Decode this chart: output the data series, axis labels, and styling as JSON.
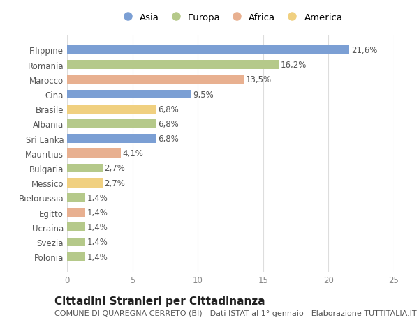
{
  "categories": [
    "Polonia",
    "Svezia",
    "Ucraina",
    "Egitto",
    "Bielorussia",
    "Messico",
    "Bulgaria",
    "Mauritius",
    "Sri Lanka",
    "Albania",
    "Brasile",
    "Cina",
    "Marocco",
    "Romania",
    "Filippine"
  ],
  "values": [
    1.4,
    1.4,
    1.4,
    1.4,
    1.4,
    2.7,
    2.7,
    4.1,
    6.8,
    6.8,
    6.8,
    9.5,
    13.5,
    16.2,
    21.6
  ],
  "labels": [
    "1,4%",
    "1,4%",
    "1,4%",
    "1,4%",
    "1,4%",
    "2,7%",
    "2,7%",
    "4,1%",
    "6,8%",
    "6,8%",
    "6,8%",
    "9,5%",
    "13,5%",
    "16,2%",
    "21,6%"
  ],
  "colors": [
    "#b5c98a",
    "#b5c98a",
    "#b5c98a",
    "#e8b090",
    "#b5c98a",
    "#f0d080",
    "#b5c98a",
    "#e8b090",
    "#7b9fd4",
    "#b5c98a",
    "#f0d080",
    "#7b9fd4",
    "#e8b090",
    "#b5c98a",
    "#7b9fd4"
  ],
  "legend_labels": [
    "Asia",
    "Europa",
    "Africa",
    "America"
  ],
  "legend_colors": [
    "#7b9fd4",
    "#b5c98a",
    "#e8b090",
    "#f0d080"
  ],
  "title": "Cittadini Stranieri per Cittadinanza",
  "subtitle": "COMUNE DI QUAREGNA CERRETO (BI) - Dati ISTAT al 1° gennaio - Elaborazione TUTTITALIA.IT",
  "xlim": [
    0,
    25
  ],
  "xticks": [
    0,
    5,
    10,
    15,
    20,
    25
  ],
  "background_color": "#ffffff",
  "grid_color": "#dddddd",
  "bar_height": 0.6,
  "label_fontsize": 8.5,
  "title_fontsize": 11,
  "subtitle_fontsize": 8,
  "tick_fontsize": 8.5,
  "legend_fontsize": 9.5
}
